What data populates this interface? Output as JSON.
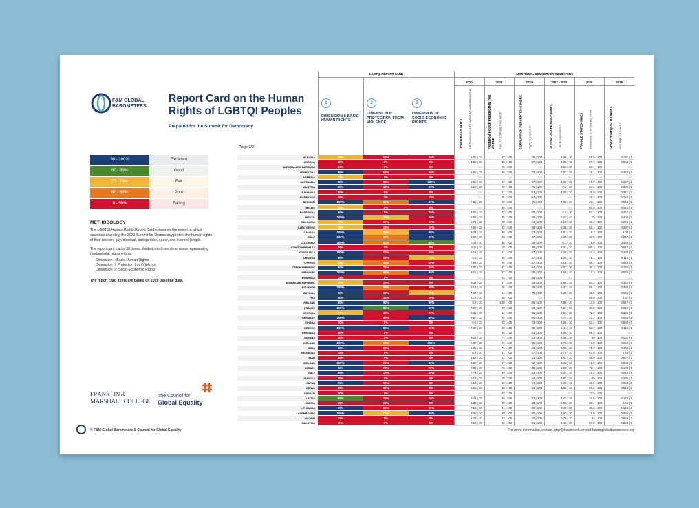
{
  "header": {
    "logo": "F&M GLOBAL BAROMETERS",
    "title": "Report Card on the Human Rights of LGBTQI Peoples",
    "subtitle": "Prepared for the Summit for Democracy",
    "page": "Page 1/2"
  },
  "legend": [
    {
      "range": "90 - 100%",
      "label": "Excellent",
      "color": "#1d3f78",
      "tint": "#e8ecf1"
    },
    {
      "range": "80 - 89%",
      "label": "Good",
      "color": "#4b8a2c",
      "tint": "#edf3ea"
    },
    {
      "range": "70 - 79%",
      "label": "Fair",
      "color": "#f2b533",
      "tint": "#fdf6e6"
    },
    {
      "range": "60 - 69%",
      "label": "Poor",
      "color": "#e8781c",
      "tint": "#fdefe4"
    },
    {
      "range": "0 - 59%",
      "label": "Failing",
      "color": "#d2112c",
      "tint": "#fbe5e8"
    }
  ],
  "methodology": {
    "heading": "METHODOLOGY",
    "paragraphs": [
      "The LGBTQI Human Rights Report Card measures the extent to which countries attending the 2021 Summit for Democracy protect the human rights of their lesbian, gay, bisexual, transgender, queer, and intersex people.",
      "The report card tracks 30 items, divided into three dimensions representing fundamental human rights:"
    ],
    "dimensions": [
      "Dimension I: Basic Human Rights",
      "Dimension II: Protection from Violence",
      "Dimension III: Socio-Economic Rights"
    ],
    "note": "The report card items are based on 2020 baseline data."
  },
  "logos": {
    "college": "FRANKLIN & MARSHALL COLLEGE",
    "council_pre": "The Council for",
    "council": "Global Equality"
  },
  "footer": {
    "left": "© F&M Global Barometers & Council for Global Equality",
    "right": "For more information, contact gbgr@fandm.edu or visit fandmglobalbarometers.org"
  },
  "table": {
    "group1": "LGBTQI REPORT CARD",
    "group2": "ADDITIONAL DEMOCRACY INDICATORS",
    "dimensions": [
      {
        "num": "1",
        "label": "DIMENSION I: BASIC HUMAN RIGHTS"
      },
      {
        "num": "2",
        "label": "DIMENSION II: PROTECTION FROM VIOLENCE"
      },
      {
        "num": "3",
        "label": "DIMENSION III: SOCIO-ECONOMIC RIGHTS"
      }
    ],
    "indicators": [
      {
        "year": "2020",
        "title": "DEMOCRACY INDEX",
        "sub": "Full Democracy 8-10 Hybrid 4-6 Authoritarian 0-4"
      },
      {
        "year": "2020",
        "title": "FREEDOM HOUSE FREEDOM IN THE WORLD",
        "sub": "Free 70-100 Partly Free 40-69"
      },
      {
        "year": "2020",
        "title": "CORRUPTION PERCEPTIONS INDEX",
        "sub": "Highly Corrupt 0-30"
      },
      {
        "year": "2017 - 2020",
        "title": "GLOBAL ACCEPTANCE INDEX",
        "sub": "Low Acceptance 0-3"
      },
      {
        "year": "2020",
        "title": "FRAGILE STATES INDEX",
        "sub": "Sustainable 0-30 Warning 60-90"
      },
      {
        "year": "2019",
        "title": "GENDER INEQUALITY INDEX",
        "sub": "Very High 0.3 Low 1.0"
      }
    ],
    "rows": [
      [
        "ALBANIA",
        "75%",
        "50%",
        "50%",
        "6.08 | 10",
        "67 | 100",
        "36 | 100",
        "2.86 | 10",
        "58.8 | 100",
        "0.181 | 1"
      ],
      [
        "ANGOLA",
        "40%",
        "0%",
        "0%",
        "3.66 | 10",
        "32 | 100",
        "27 | 100",
        "3.86 | 10",
        "87.3 | 100",
        "0.536 | 1"
      ],
      [
        "ANTIGUA AND BARBUDA",
        "30%",
        "0%",
        "0%",
        "n/a",
        "85 | 100",
        "n/a",
        "3.52 | 10",
        "52.1 | 100",
        "n/a"
      ],
      [
        "ARGENTINA",
        "90%",
        "50%",
        "50%",
        "6.95 | 10",
        "85 | 100",
        "42 | 100",
        "7.07 | 10",
        "46.1 | 100",
        "0.328 | 1"
      ],
      [
        "ARMENIA",
        "75%",
        "0%",
        "0%",
        "n/a",
        "n/a",
        "n/a",
        "n/a",
        "n/a",
        "n/a"
      ],
      [
        "AUSTRALIA",
        "90%",
        "20%",
        "100%",
        "8.96 | 10",
        "97 | 100",
        "77 | 100",
        "8.03 | 10",
        "19.7 | 100",
        "0.097 | 1"
      ],
      [
        "AUSTRIA",
        "90%",
        "40%",
        "90%",
        "8.16 | 10",
        "93 | 100",
        "76 | 100",
        "7.2 | 10",
        "24.1 | 100",
        "0.069 | 1"
      ],
      [
        "BAHAMAS",
        "40%",
        "0%",
        "0%",
        "n/a",
        "91 | 100",
        "63 | 100",
        "4.09 | 10",
        "49.9 | 100",
        "0.341 | 1"
      ],
      [
        "BARBADOS",
        "40%",
        "0%",
        "10%",
        "n/a",
        "95 | 100",
        "64 | 100",
        "n/a",
        "48.4 | 100",
        "0.252 | 1"
      ],
      [
        "BELGIUM",
        "100%",
        "60%",
        "90%",
        "7.51 | 10",
        "96 | 100",
        "76 | 100",
        "7.85 | 10",
        "27.1 | 100",
        "0.043 | 1"
      ],
      [
        "BELIZE",
        "75%",
        "0%",
        "0%",
        "n/a",
        "86 | 100",
        "n/a",
        "n/a",
        "60.8 | 100",
        "0.415 | 1"
      ],
      [
        "BOTSWANA",
        "90%",
        "0%",
        "20%",
        "7.62 | 10",
        "72 | 100",
        "60 | 100",
        "4.3 | 10",
        "62.1 | 100",
        "0.465 | 1"
      ],
      [
        "BRAZIL",
        "100%",
        "70%",
        "50%",
        "6.92 | 10",
        "75 | 100",
        "38 | 100",
        "5.22 | 10",
        "73 | 100",
        "0.408 | 1"
      ],
      [
        "BULGARIA",
        "75%",
        "20%",
        "50%",
        "6.71 | 10",
        "80 | 100",
        "44 | 100",
        "4.19 | 10",
        "48.2 | 100",
        "0.206 | 1"
      ],
      [
        "CABO VERDE",
        "75%",
        "10%",
        "10%",
        "7.65 | 10",
        "92 | 100",
        "58 | 100",
        "5.35 | 10",
        "60.4 | 100",
        "0.397 | 1"
      ],
      [
        "CANADA",
        "100%",
        "70%",
        "90%",
        "9.24 | 10",
        "98 | 100",
        "77 | 100",
        "9.02 | 10",
        "19.7 | 100",
        "0.08 | 1"
      ],
      [
        "CHILE",
        "100%",
        "60%",
        "90%",
        "8.28 | 10",
        "90 | 100",
        "67 | 100",
        "6.65 | 10",
        "42.5 | 100",
        "0.247 | 1"
      ],
      [
        "COLOMBIA",
        "100%",
        "60%",
        "80%",
        "7.04 | 10",
        "66 | 100",
        "39 | 100",
        "6.1 | 10",
        "76.6 | 100",
        "0.428 | 1"
      ],
      [
        "CONGO KINSHASA",
        "30%",
        "0%",
        "0%",
        "3.11 | 10",
        "19 | 100",
        "18 | 100",
        "3.33 | 10",
        "109.4 | 100",
        "0.617 | 1"
      ],
      [
        "COSTA RICA",
        "100%",
        "20%",
        "40%",
        "8.16 | 10",
        "91 | 100",
        "57 | 100",
        "6.25 | 10",
        "43.2 | 100",
        "0.288 | 1"
      ],
      [
        "CROATIA",
        "90%",
        "20%",
        "70%",
        "6.5 | 10",
        "85 | 100",
        "47 | 100",
        "5.25 | 10",
        "46.1 | 100",
        "0.116 | 1"
      ],
      [
        "CYPRUS",
        "75%",
        "60%",
        "40%",
        "7.56 | 10",
        "94 | 100",
        "57 | 100",
        "5.16 | 10",
        "58.1 | 100",
        "0.086 | 1"
      ],
      [
        "CZECH REPUBLIC",
        "90%",
        "20%",
        "40%",
        "7.67 | 10",
        "91 | 100",
        "54 | 100",
        "6.07 | 10",
        "35.7 | 100",
        "0.136 | 1"
      ],
      [
        "DENMARK",
        "100%",
        "60%",
        "90%",
        "9.15 | 10",
        "97 | 100",
        "88 | 100",
        "8.69 | 10",
        "17.2 | 100",
        "0.038 | 1"
      ],
      [
        "DOMINICA",
        "15%",
        "0%",
        "0%",
        "n/a",
        "93 | 100",
        "55 | 100",
        "n/a",
        "n/a",
        "n/a"
      ],
      [
        "DOMINICAN REPUBLIC",
        "75%",
        "20%",
        "0%",
        "6.32 | 10",
        "67 | 100",
        "28 | 100",
        "4.95 | 10",
        "64.4 | 100",
        "0.455 | 1"
      ],
      [
        "ECUADOR",
        "100%",
        "60%",
        "50%",
        "6.13 | 10",
        "65 | 100",
        "39 | 100",
        "5.47 | 10",
        "69.1 | 100",
        "0.384 | 1"
      ],
      [
        "ESTONIA",
        "90%",
        "30%",
        "70%",
        "7.84 | 10",
        "94 | 100",
        "75 | 100",
        "5.25 | 10",
        "38.6 | 100",
        "0.086 | 1"
      ],
      [
        "FIJI",
        "90%",
        "30%",
        "20%",
        "5.72 | 10",
        "60 | 100",
        "n/a",
        "n/a",
        "69.6 | 100",
        "0.37 | 1"
      ],
      [
        "FINLAND",
        "90%",
        "90%",
        "90%",
        "9.2 | 10",
        "100 | 100",
        "85 | 100",
        "7.96 | 10",
        "14.6 | 100",
        "0.047 | 1"
      ],
      [
        "FRANCE",
        "100%",
        "80%",
        "90%",
        "7.99 | 10",
        "90 | 100",
        "69 | 100",
        "7.51 | 10",
        "30.6 | 100",
        "0.049 | 1"
      ],
      [
        "GEORGIA",
        "75%",
        "40%",
        "20%",
        "5.31 | 10",
        "61 | 100",
        "56 | 100",
        "2.94 | 10",
        "71.2 | 100",
        "0.331 | 1"
      ],
      [
        "GERMANY",
        "100%",
        "40%",
        "90%",
        "8.67 | 10",
        "94 | 100",
        "80 | 100",
        "7.73 | 10",
        "23.2 | 100",
        "0.084 | 1"
      ],
      [
        "GHANA",
        "30%",
        "0%",
        "0%",
        "6.5 | 10",
        "82 | 100",
        "43 | 100",
        "2.58 | 10",
        "64.2 | 100",
        "0.538 | 1"
      ],
      [
        "GREECE",
        "100%",
        "90%",
        "50%",
        "7.39 | 10",
        "88 | 100",
        "50 | 100",
        "5.44 | 10",
        "52.7 | 100",
        "0.116 | 1"
      ],
      [
        "GRENADA",
        "40%",
        "0%",
        "0%",
        "n/a",
        "89 | 100",
        "53 | 100",
        "3.86 | 10",
        "66.2 | 100",
        "n/a"
      ],
      [
        "GUYANA",
        "40%",
        "0%",
        "0%",
        "6.01 | 10",
        "74 | 100",
        "41 | 100",
        "4.36 | 10",
        "65 | 100",
        "0.462 | 1"
      ],
      [
        "ICELAND",
        "100%",
        "60%",
        "100%",
        "9.37 | 10",
        "94 | 100",
        "75 | 100",
        "9.76 | 10",
        "17.8 | 100",
        "0.058 | 1"
      ],
      [
        "INDIA",
        "90%",
        "20%",
        "40%",
        "6.61 | 10",
        "71 | 100",
        "40 | 100",
        "5.39 | 10",
        "75.3 | 100",
        "0.488 | 1"
      ],
      [
        "INDONESIA",
        "15%",
        "0%",
        "0%",
        "6.3 | 10",
        "61 | 100",
        "37 | 100",
        "2.79 | 10",
        "67.8 | 100",
        "0.48 | 1"
      ],
      [
        "IRAQ",
        "30%",
        "0%",
        "0%",
        "3.62 | 10",
        "31 | 100",
        "21 | 100",
        "3.61 | 10",
        "95.9 | 100",
        "0.577 | 1"
      ],
      [
        "IRELAND",
        "100%",
        "20%",
        "90%",
        "9.05 | 10",
        "97 | 100",
        "72 | 100",
        "8.43 | 10",
        "19.9 | 100",
        "0.093 | 1"
      ],
      [
        "ISRAEL",
        "90%",
        "20%",
        "20%",
        "7.84 | 10",
        "76 | 100",
        "60 | 100",
        "6.89 | 10",
        "75.1 | 100",
        "0.109 | 1"
      ],
      [
        "ITALY",
        "90%",
        "10%",
        "30%",
        "7.74 | 10",
        "89 | 100",
        "53 | 100",
        "6.34 | 10",
        "42.4 | 100",
        "0.069 | 1"
      ],
      [
        "JAMAICA",
        "30%",
        "0%",
        "0%",
        "7.13 | 10",
        "78 | 100",
        "44 | 100",
        "3.83 | 10",
        "60 | 100",
        "0.396 | 1"
      ],
      [
        "JAPAN",
        "90%",
        "10%",
        "0%",
        "8.13 | 10",
        "96 | 100",
        "74 | 100",
        "6.25 | 10",
        "32.3 | 100",
        "0.094 | 1"
      ],
      [
        "KENYA",
        "30%",
        "10%",
        "0%",
        "5.05 | 10",
        "48 | 100",
        "31 | 100",
        "3.82 | 10",
        "90.3 | 100",
        "0.518 | 1"
      ],
      [
        "KIRIBATI",
        "30%",
        "0%",
        "0%",
        "n/a",
        "93 | 100",
        "n/a",
        "n/a",
        "73.6 | 100",
        "n/a"
      ],
      [
        "LATVIA",
        "80%",
        "10%",
        "10%",
        "7.24 | 10",
        "89 | 100",
        "57 | 100",
        "4.42 | 10",
        "42.6 | 100",
        "0.176 | 1"
      ],
      [
        "LIBERIA",
        "15%",
        "10%",
        "0%",
        "5.32 | 10",
        "60 | 100",
        "28 | 100",
        "2.85 | 10",
        "90.1 | 100",
        "0.65 | 1"
      ],
      [
        "LITHUANIA",
        "90%",
        "20%",
        "30%",
        "7.13 | 10",
        "91 | 100",
        "60 | 100",
        "4.38 | 10",
        "36.6 | 100",
        "0.124 | 1"
      ],
      [
        "LUXEMBOURG",
        "100%",
        "70%",
        "90%",
        "8.68 | 10",
        "98 | 100",
        "80 | 100",
        "7.92 | 10",
        "18.8 | 100",
        "0.065 | 1"
      ],
      [
        "MALAWI",
        "15%",
        "0%",
        "0%",
        "5.74 | 10",
        "62 | 100",
        "30 | 100",
        "1.76 | 10",
        "84 | 100",
        "0.565 | 1"
      ],
      [
        "MALAYSIA",
        "0%",
        "0%",
        "0%",
        "7.19 | 10",
        "52 | 100",
        "51 | 100",
        "3.46 | 10",
        "57.8 | 100",
        "0.253 | 1"
      ]
    ]
  }
}
